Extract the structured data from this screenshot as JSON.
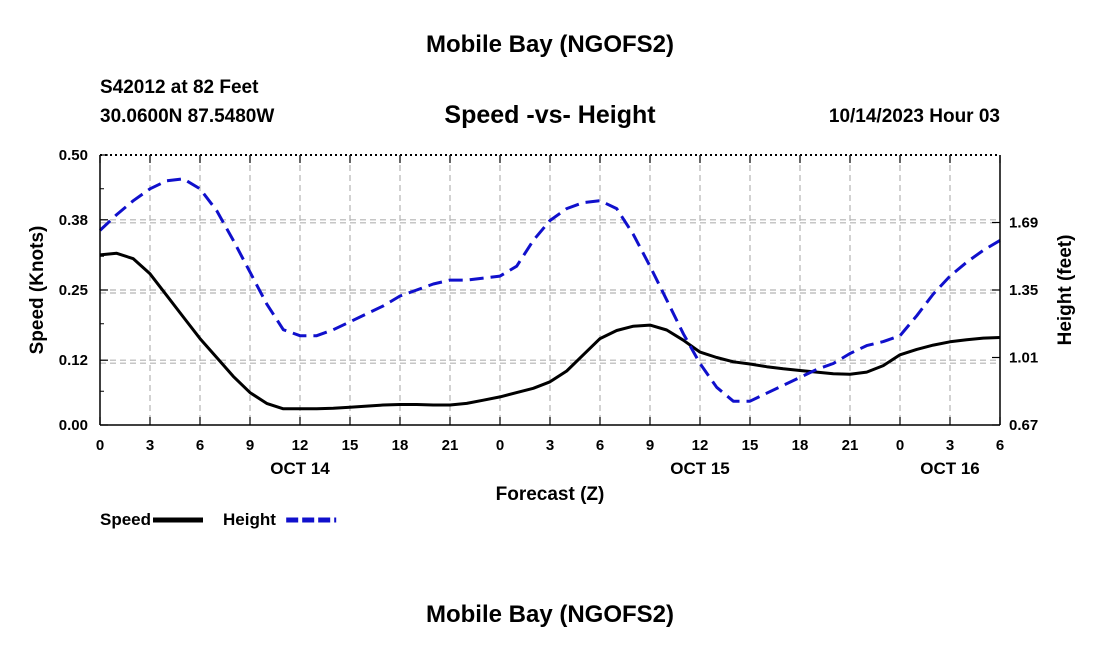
{
  "header": {
    "title": "Mobile Bay (NGOFS2)",
    "station": "S42012 at 82 Feet",
    "coords": "30.0600N  87.5480W",
    "subtitle": "Speed -vs- Height",
    "runtime": "10/14/2023 Hour 03"
  },
  "footer": {
    "title": "Mobile Bay (NGOFS2)"
  },
  "colors": {
    "speed": "#000000",
    "height": "#1010cc",
    "grid": "#b4b4b4"
  },
  "chart_data": {
    "type": "line",
    "title": "Speed -vs- Height",
    "xlabel": "Forecast (Z)",
    "ylabel": "Speed (Knots)",
    "y2label": "Height (feet)",
    "xlim": [
      0,
      54
    ],
    "ylim": [
      0,
      0.5
    ],
    "y2lim": [
      0.67,
      2.03
    ],
    "yticks": [
      "0.00",
      "0.12",
      "0.25",
      "0.38",
      "0.50"
    ],
    "y2ticks": [
      "0.67",
      "1.01",
      "1.35",
      "1.69"
    ],
    "xtick_labels": [
      "0",
      "3",
      "6",
      "9",
      "12",
      "15",
      "18",
      "21",
      "0",
      "3",
      "6",
      "9",
      "12",
      "15",
      "18",
      "21",
      "0",
      "3",
      "6"
    ],
    "date_labels": [
      {
        "label": "OCT 14",
        "x": 12
      },
      {
        "label": "OCT 15",
        "x": 36
      },
      {
        "label": "OCT 16",
        "x": 51
      }
    ],
    "grid": true,
    "series": [
      {
        "name": "Speed",
        "axis": "left",
        "style": "solid",
        "points": [
          [
            0,
            0.315
          ],
          [
            1,
            0.318
          ],
          [
            2,
            0.308
          ],
          [
            3,
            0.28
          ],
          [
            4,
            0.24
          ],
          [
            5,
            0.2
          ],
          [
            6,
            0.16
          ],
          [
            7,
            0.125
          ],
          [
            8,
            0.09
          ],
          [
            9,
            0.06
          ],
          [
            10,
            0.04
          ],
          [
            11,
            0.03
          ],
          [
            12,
            0.03
          ],
          [
            13,
            0.03
          ],
          [
            14,
            0.031
          ],
          [
            15,
            0.033
          ],
          [
            16,
            0.035
          ],
          [
            17,
            0.037
          ],
          [
            18,
            0.038
          ],
          [
            19,
            0.038
          ],
          [
            20,
            0.037
          ],
          [
            21,
            0.037
          ],
          [
            22,
            0.04
          ],
          [
            23,
            0.046
          ],
          [
            24,
            0.052
          ],
          [
            25,
            0.06
          ],
          [
            26,
            0.068
          ],
          [
            27,
            0.08
          ],
          [
            28,
            0.1
          ],
          [
            29,
            0.13
          ],
          [
            30,
            0.16
          ],
          [
            31,
            0.175
          ],
          [
            32,
            0.183
          ],
          [
            33,
            0.185
          ],
          [
            34,
            0.176
          ],
          [
            35,
            0.157
          ],
          [
            36,
            0.135
          ],
          [
            37,
            0.125
          ],
          [
            38,
            0.117
          ],
          [
            39,
            0.113
          ],
          [
            40,
            0.108
          ],
          [
            41,
            0.104
          ],
          [
            42,
            0.101
          ],
          [
            43,
            0.098
          ],
          [
            44,
            0.095
          ],
          [
            45,
            0.094
          ],
          [
            46,
            0.098
          ],
          [
            47,
            0.11
          ],
          [
            48,
            0.13
          ],
          [
            49,
            0.14
          ],
          [
            50,
            0.148
          ],
          [
            51,
            0.154
          ],
          [
            52,
            0.158
          ],
          [
            53,
            0.161
          ],
          [
            54,
            0.162
          ]
        ]
      },
      {
        "name": "Height",
        "axis": "right",
        "style": "dashed",
        "points": [
          [
            0,
            1.65
          ],
          [
            1,
            1.73
          ],
          [
            2,
            1.8
          ],
          [
            3,
            1.86
          ],
          [
            4,
            1.9
          ],
          [
            5,
            1.91
          ],
          [
            6,
            1.86
          ],
          [
            7,
            1.75
          ],
          [
            8,
            1.6
          ],
          [
            9,
            1.44
          ],
          [
            10,
            1.28
          ],
          [
            11,
            1.15
          ],
          [
            12,
            1.12
          ],
          [
            13,
            1.12
          ],
          [
            14,
            1.15
          ],
          [
            15,
            1.19
          ],
          [
            16,
            1.23
          ],
          [
            17,
            1.27
          ],
          [
            18,
            1.32
          ],
          [
            19,
            1.35
          ],
          [
            20,
            1.38
          ],
          [
            21,
            1.4
          ],
          [
            22,
            1.4
          ],
          [
            23,
            1.41
          ],
          [
            24,
            1.42
          ],
          [
            25,
            1.47
          ],
          [
            26,
            1.6
          ],
          [
            27,
            1.7
          ],
          [
            28,
            1.76
          ],
          [
            29,
            1.79
          ],
          [
            30,
            1.8
          ],
          [
            31,
            1.76
          ],
          [
            32,
            1.63
          ],
          [
            33,
            1.47
          ],
          [
            34,
            1.3
          ],
          [
            35,
            1.13
          ],
          [
            36,
            0.98
          ],
          [
            37,
            0.86
          ],
          [
            38,
            0.79
          ],
          [
            39,
            0.79
          ],
          [
            40,
            0.83
          ],
          [
            41,
            0.87
          ],
          [
            42,
            0.91
          ],
          [
            43,
            0.95
          ],
          [
            44,
            0.98
          ],
          [
            45,
            1.03
          ],
          [
            46,
            1.07
          ],
          [
            47,
            1.09
          ],
          [
            48,
            1.12
          ],
          [
            49,
            1.22
          ],
          [
            50,
            1.33
          ],
          [
            51,
            1.42
          ],
          [
            52,
            1.49
          ],
          [
            53,
            1.55
          ],
          [
            54,
            1.6
          ]
        ]
      }
    ],
    "legend": [
      {
        "label": "Speed",
        "series": "Speed"
      },
      {
        "label": "Height",
        "series": "Height"
      }
    ]
  }
}
